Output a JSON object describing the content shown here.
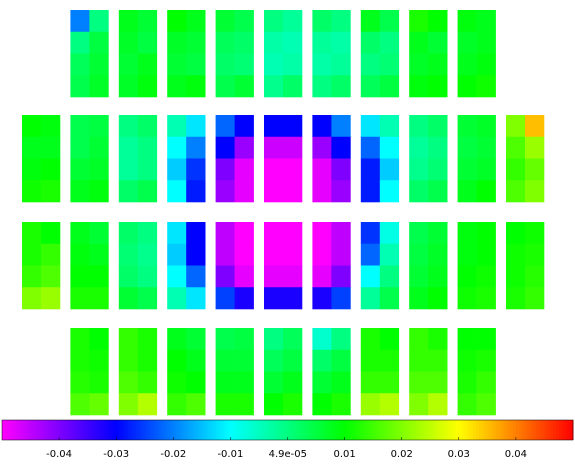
{
  "chart_data": {
    "type": "heatmap",
    "panel_rows": [
      [
        [
          [
            -0.02,
            0.0
          ],
          [
            0.0,
            0.005
          ],
          [
            0.003,
            0.006
          ],
          [
            0.004,
            0.007
          ]
        ],
        [
          [
            0.008,
            0.006
          ],
          [
            0.007,
            0.005
          ],
          [
            0.006,
            0.008
          ],
          [
            0.007,
            0.009
          ]
        ],
        [
          [
            0.01,
            0.008
          ],
          [
            0.007,
            0.006
          ],
          [
            0.006,
            0.005
          ],
          [
            0.008,
            0.009
          ]
        ],
        [
          [
            0.006,
            0.004
          ],
          [
            0.003,
            0.002
          ],
          [
            0.002,
            0.001
          ],
          [
            0.004,
            0.006
          ]
        ],
        [
          [
            0.0,
            -0.002
          ],
          [
            -0.003,
            -0.004
          ],
          [
            -0.004,
            -0.003
          ],
          [
            -0.001,
            0.002
          ]
        ],
        [
          [
            0.002,
            0.0
          ],
          [
            -0.002,
            -0.003
          ],
          [
            -0.003,
            -0.002
          ],
          [
            0.0,
            0.002
          ]
        ],
        [
          [
            0.008,
            0.004
          ],
          [
            0.002,
            0.0
          ],
          [
            0.0,
            0.001
          ],
          [
            0.003,
            0.005
          ]
        ],
        [
          [
            0.012,
            0.01
          ],
          [
            0.008,
            0.006
          ],
          [
            0.007,
            0.008
          ],
          [
            0.009,
            0.01
          ]
        ],
        [
          [
            0.009,
            0.008
          ],
          [
            0.007,
            0.008
          ],
          [
            0.008,
            0.009
          ],
          [
            0.01,
            0.011
          ]
        ]
      ],
      [
        [
          [
            0.01,
            0.009
          ],
          [
            0.008,
            0.008
          ],
          [
            0.009,
            0.01
          ],
          [
            0.011,
            0.012
          ]
        ],
        [
          [
            0.004,
            0.005
          ],
          [
            0.004,
            0.006
          ],
          [
            0.006,
            0.007
          ],
          [
            0.008,
            0.009
          ]
        ],
        [
          [
            0.0,
            0.002
          ],
          [
            -0.002,
            0.0
          ],
          [
            -0.002,
            0.0
          ],
          [
            0.002,
            0.004
          ]
        ],
        [
          [
            -0.004,
            -0.012
          ],
          [
            -0.01,
            -0.02
          ],
          [
            -0.014,
            -0.026
          ],
          [
            -0.01,
            -0.028
          ]
        ],
        [
          [
            -0.022,
            -0.03
          ],
          [
            -0.03,
            -0.042
          ],
          [
            -0.04,
            -0.048
          ],
          [
            -0.042,
            -0.048
          ]
        ],
        [
          [
            -0.03,
            -0.03
          ],
          [
            -0.046,
            -0.046
          ],
          [
            -0.05,
            -0.05
          ],
          [
            -0.05,
            -0.05
          ]
        ],
        [
          [
            -0.03,
            -0.02
          ],
          [
            -0.042,
            -0.03
          ],
          [
            -0.048,
            -0.04
          ],
          [
            -0.048,
            -0.042
          ]
        ],
        [
          [
            -0.012,
            -0.004
          ],
          [
            -0.022,
            -0.01
          ],
          [
            -0.028,
            -0.014
          ],
          [
            -0.028,
            -0.01
          ]
        ],
        [
          [
            0.0,
            0.002
          ],
          [
            -0.002,
            0.0
          ],
          [
            -0.001,
            0.001
          ],
          [
            0.002,
            0.004
          ]
        ],
        [
          [
            0.006,
            0.007
          ],
          [
            0.005,
            0.006
          ],
          [
            0.006,
            0.007
          ],
          [
            0.008,
            0.01
          ]
        ],
        [
          [
            0.02,
            0.035
          ],
          [
            0.016,
            0.022
          ],
          [
            0.014,
            0.018
          ],
          [
            0.016,
            0.02
          ]
        ]
      ],
      [
        [
          [
            0.012,
            0.01
          ],
          [
            0.012,
            0.014
          ],
          [
            0.014,
            0.016
          ],
          [
            0.02,
            0.022
          ]
        ],
        [
          [
            0.008,
            0.006
          ],
          [
            0.009,
            0.008
          ],
          [
            0.01,
            0.01
          ],
          [
            0.012,
            0.012
          ]
        ],
        [
          [
            0.002,
            0.0
          ],
          [
            0.001,
            -0.001
          ],
          [
            0.002,
            0.0
          ],
          [
            0.006,
            0.004
          ]
        ],
        [
          [
            -0.012,
            -0.03
          ],
          [
            -0.014,
            -0.03
          ],
          [
            -0.01,
            -0.022
          ],
          [
            -0.004,
            -0.012
          ]
        ],
        [
          [
            -0.045,
            -0.05
          ],
          [
            -0.045,
            -0.05
          ],
          [
            -0.04,
            -0.048
          ],
          [
            -0.025,
            -0.032
          ]
        ],
        [
          [
            -0.05,
            -0.05
          ],
          [
            -0.05,
            -0.05
          ],
          [
            -0.048,
            -0.048
          ],
          [
            -0.032,
            -0.032
          ]
        ],
        [
          [
            -0.05,
            -0.045
          ],
          [
            -0.05,
            -0.045
          ],
          [
            -0.048,
            -0.04
          ],
          [
            -0.032,
            -0.025
          ]
        ],
        [
          [
            -0.026,
            -0.008
          ],
          [
            -0.022,
            -0.004
          ],
          [
            -0.01,
            0.0
          ],
          [
            -0.002,
            0.004
          ]
        ],
        [
          [
            0.004,
            0.006
          ],
          [
            0.005,
            0.007
          ],
          [
            0.006,
            0.008
          ],
          [
            0.008,
            0.01
          ]
        ],
        [
          [
            0.009,
            0.01
          ],
          [
            0.009,
            0.01
          ],
          [
            0.01,
            0.011
          ],
          [
            0.011,
            0.012
          ]
        ],
        [
          [
            0.01,
            0.011
          ],
          [
            0.011,
            0.012
          ],
          [
            0.011,
            0.013
          ],
          [
            0.012,
            0.014
          ]
        ]
      ],
      [
        [
          [
            0.012,
            0.01
          ],
          [
            0.012,
            0.011
          ],
          [
            0.013,
            0.012
          ],
          [
            0.016,
            0.018
          ]
        ],
        [
          [
            0.014,
            0.012
          ],
          [
            0.014,
            0.012
          ],
          [
            0.016,
            0.014
          ],
          [
            0.02,
            0.024
          ]
        ],
        [
          [
            0.008,
            0.006
          ],
          [
            0.01,
            0.008
          ],
          [
            0.011,
            0.01
          ],
          [
            0.014,
            0.016
          ]
        ],
        [
          [
            0.004,
            0.005
          ],
          [
            0.006,
            0.006
          ],
          [
            0.008,
            0.008
          ],
          [
            0.012,
            0.012
          ]
        ],
        [
          [
            0.0,
            0.003
          ],
          [
            0.003,
            0.005
          ],
          [
            0.006,
            0.008
          ],
          [
            0.01,
            0.012
          ]
        ],
        [
          [
            -0.006,
            0.0
          ],
          [
            0.002,
            0.005
          ],
          [
            0.006,
            0.008
          ],
          [
            0.01,
            0.012
          ]
        ],
        [
          [
            0.012,
            0.01
          ],
          [
            0.012,
            0.012
          ],
          [
            0.014,
            0.014
          ],
          [
            0.022,
            0.024
          ]
        ],
        [
          [
            0.014,
            0.012
          ],
          [
            0.014,
            0.014
          ],
          [
            0.016,
            0.016
          ],
          [
            0.02,
            0.024
          ]
        ],
        [
          [
            0.01,
            0.01
          ],
          [
            0.011,
            0.012
          ],
          [
            0.012,
            0.014
          ],
          [
            0.014,
            0.016
          ]
        ]
      ]
    ],
    "clim": [
      -0.05,
      0.05
    ],
    "colormap": [
      "#ff00ff",
      "#0000ff",
      "#00ffff",
      "#00ff00",
      "#ffff00",
      "#ff0000"
    ],
    "cticks": [
      -0.04,
      -0.03,
      -0.02,
      -0.01,
      {
        "value": 4.9e-05,
        "label": "4.9e-05"
      },
      0.01,
      0.02,
      0.03,
      0.04
    ]
  }
}
